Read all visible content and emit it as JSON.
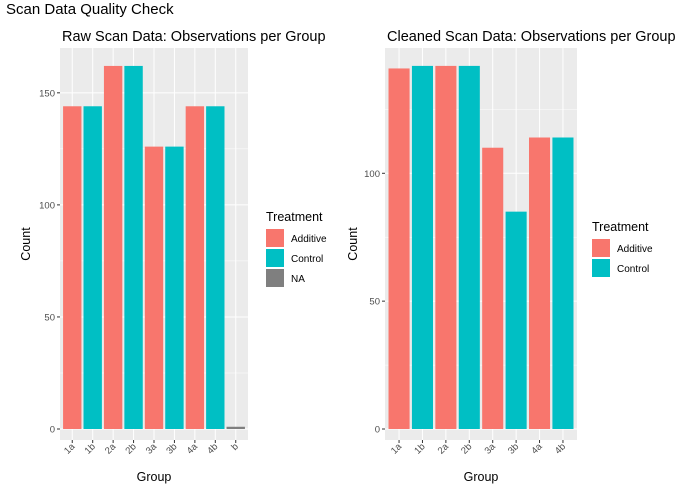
{
  "figure_title": "Scan Data Quality Check",
  "colors": {
    "Additive": "#F8766D",
    "Control": "#00BFC4",
    "NA": "#7F7F7F",
    "panel": "#EBEBEB",
    "grid": "#FFFFFF"
  },
  "chart_data": [
    {
      "type": "bar",
      "title": "Raw Scan Data: Observations per Group",
      "xlabel": "Group",
      "ylabel": "Count",
      "categories": [
        "1a",
        "1b",
        "2a",
        "2b",
        "3a",
        "3b",
        "4a",
        "4b",
        "b"
      ],
      "values": [
        144,
        144,
        162,
        162,
        126,
        126,
        144,
        144,
        1
      ],
      "treatment": [
        "Additive",
        "Control",
        "Additive",
        "Control",
        "Additive",
        "Control",
        "Additive",
        "Control",
        "NA"
      ],
      "yticks": [
        0,
        50,
        100,
        150
      ],
      "ylim": [
        0,
        170
      ],
      "legend": {
        "title": "Treatment",
        "entries": [
          "Additive",
          "Control",
          "NA"
        ],
        "position": "right"
      }
    },
    {
      "type": "bar",
      "title": "Cleaned Scan Data: Observations per Group",
      "xlabel": "Group",
      "ylabel": "Count",
      "categories": [
        "1a",
        "1b",
        "2a",
        "2b",
        "3a",
        "3b",
        "4a",
        "4b"
      ],
      "values": [
        141,
        142,
        142,
        142,
        110,
        85,
        114,
        114
      ],
      "treatment": [
        "Additive",
        "Control",
        "Additive",
        "Control",
        "Additive",
        "Control",
        "Additive",
        "Control"
      ],
      "yticks": [
        0,
        50,
        100
      ],
      "ylim": [
        0,
        149
      ],
      "legend": {
        "title": "Treatment",
        "entries": [
          "Additive",
          "Control"
        ],
        "position": "right"
      }
    }
  ]
}
